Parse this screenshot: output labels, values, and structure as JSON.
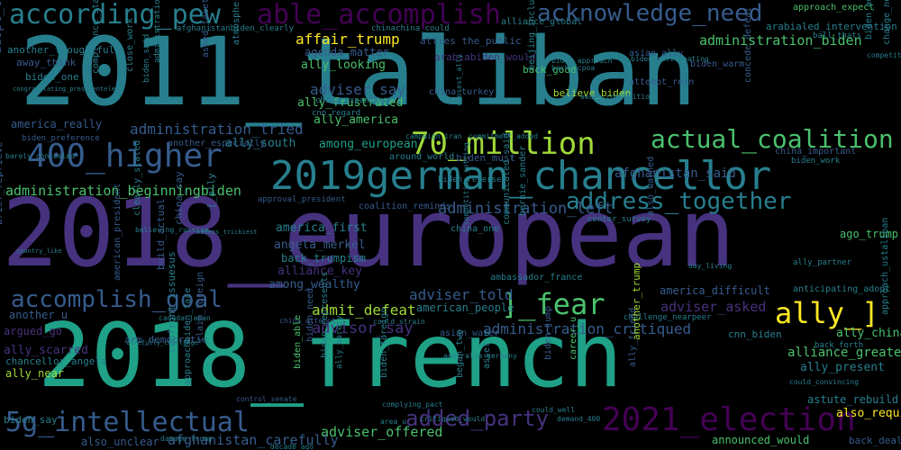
{
  "colors": {
    "background": "#000000",
    "palette": [
      "#440154",
      "#46327e",
      "#365c8d",
      "#277f8e",
      "#1fa187",
      "#4ac16d",
      "#a0da39",
      "#fde725"
    ]
  },
  "words": [
    "2011_taliban",
    "2018_european",
    "2018_french",
    "2019german_chancellor",
    "400_higher",
    "70_million",
    "according_pew",
    "able_accomplish",
    "acknowledge_need",
    "actual_coalition",
    "accomplish_goal",
    "5g_intellectual",
    "added_party",
    "2021_election",
    "address_together",
    "administration_left",
    "administration_tried",
    "adviser_say",
    "advisor_say",
    "adviser_told",
    "administration_critiqued",
    "admit_defeat",
    "adviser_asked",
    "adviser_offered",
    "afghanistan_carefully",
    "affair_trump",
    "administration_biden",
    "administration_beginningbiden",
    "afghanistan_said",
    "alliance_greatest",
    "ally_china",
    "ally_present",
    "ally_scarred",
    "ally_near",
    "ally_looking",
    "ally_frustrated",
    "ally_america",
    "ally_south",
    "among_european",
    "america_first",
    "angela_merkel",
    "back_trumpism",
    "alliance_key",
    "among_wealthy",
    "american_people",
    "[_ally",
    "]_fear",
    "ally_]",
    "also_require",
    "agenda_matter",
    "another_thoughtful",
    "allies the_public",
    "also_warned",
    "arabiabiden_would",
    "alliance_global",
    "approach_expect",
    "arabialed_intervention",
    "america_really",
    "adopt_traditional",
    "ago_trump",
    "announced_would",
    "back_deal",
    "also_unclear",
    "astute_rebuild",
    "change_need",
    "argued_go",
    "biden_say",
    "another_u",
    "arm_democratic",
    "among_european",
    "chancellor_angela",
    "america_difficult",
    "anticipating_adopt",
    "china_say",
    "china_one",
    "ambassador_france",
    "biden_must",
    "around_world",
    "asian_water",
    "cnn_biden",
    "back_forth",
    "away_think",
    "biden_one",
    "another_especially",
    "build_actual",
    "bernie_sander",
    "communicated_said",
    "coalition_reminds",
    "approval_president",
    "center_survey",
    "challenge_nearpeer",
    "afghanistanbiden_clearly",
    "chinachina_could",
    "china_expansion",
    "cnn_regard",
    "china_turkey",
    "concede_defeat",
    "asian_ally",
    "attempt_rein",
    "believe_biden",
    "back_good",
    "biden_warm",
    "biden_work",
    "ball_thats",
    "biden_advisor",
    "approach_ustaliban",
    "claim_foreign",
    "confront_issuesus",
    "approachbiden_face",
    "biden_need",
    "biden_represents",
    "ally_barely",
    "began_two",
    "biden_reverse",
    "biden_foreign",
    "biden_able",
    "biden_jump",
    "asset_u",
    "career_u",
    "ally_friend",
    "ally_partner",
    "china_important",
    "another_trump",
    "australia_germany",
    "asked_facetoface",
    "compliance_start",
    "close_work",
    "biden_said",
    "administration_president",
    "atmosphere_alliance",
    "campaign_iran",
    "closest_ally",
    "beijing_including",
    "brief_reprieve",
    "american_president",
    "clearly_stated",
    "canada_japan",
    "competition_setting",
    "bidens_trickiest",
    "commitment_added",
    "believing_russian",
    "barely_concealed",
    "biden_preference",
    "back_jcpoa",
    "biden_approach",
    "aware_competition",
    "biden_anticipating",
    "competitor_china",
    "congratulating_presidentelect",
    "damage_trump",
    "country_like",
    "carefully_challenge",
    "control_senate",
    "area_u",
    "complying_pact",
    "critiqued_would",
    "could_well",
    "decade_ago",
    "demand_400",
    "could_convincing",
    "china_attempt",
    "could_strain",
    "day_living",
    "could_democracy",
    "damaging_foreign",
    "dangerous_threat",
    "deal_tehran",
    "counterpart_realize",
    "change_north",
    "core_asian",
    "coalition_undermine"
  ]
}
